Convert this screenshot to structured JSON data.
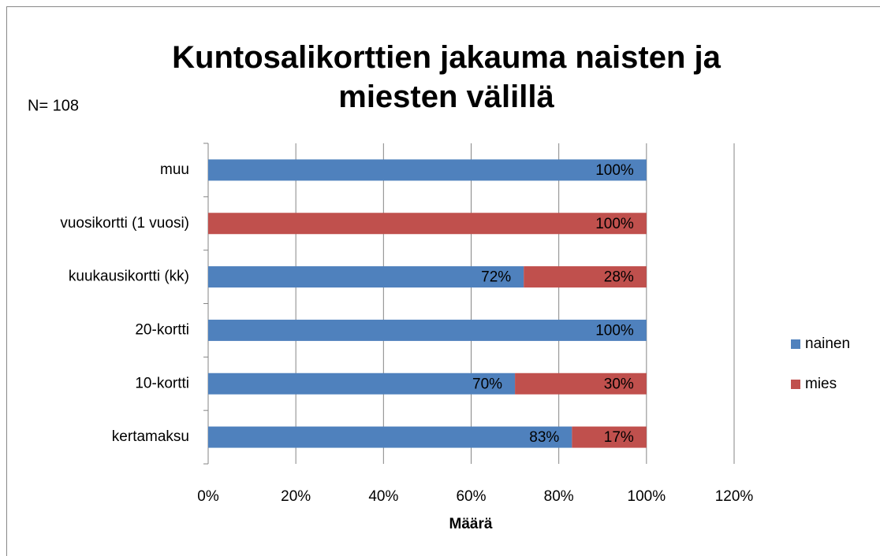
{
  "chart_data": {
    "type": "stacked_barh",
    "title": "Kuntosalikorttien jakauma naisten ja miesten välillä",
    "annotation": "N= 108",
    "x_label": "Määrä",
    "categories": [
      "muu",
      "vuosikortti (1 vuosi)",
      "kuukausikortti (kk)",
      "20-kortti",
      "10-kortti",
      "kertamaksu"
    ],
    "series": [
      {
        "name": "nainen",
        "color": "#4f81bd",
        "values": [
          100,
          0,
          72,
          100,
          70,
          83
        ],
        "value_labels": [
          "100%",
          null,
          "72%",
          "100%",
          "70%",
          "83%"
        ]
      },
      {
        "name": "mies",
        "color": "#c0504d",
        "values": [
          0,
          100,
          28,
          0,
          30,
          17
        ],
        "value_labels": [
          null,
          "100%",
          "28%",
          null,
          "30%",
          "17%"
        ]
      }
    ],
    "xlim": [
      0,
      120
    ],
    "xticks": [
      {
        "value": 0,
        "label": "0%"
      },
      {
        "value": 20,
        "label": "20%"
      },
      {
        "value": 40,
        "label": "40%"
      },
      {
        "value": 60,
        "label": "60%"
      },
      {
        "value": 80,
        "label": "80%"
      },
      {
        "value": 100,
        "label": "100%"
      },
      {
        "value": 120,
        "label": "120%"
      }
    ],
    "grid": true,
    "legend": "right"
  }
}
